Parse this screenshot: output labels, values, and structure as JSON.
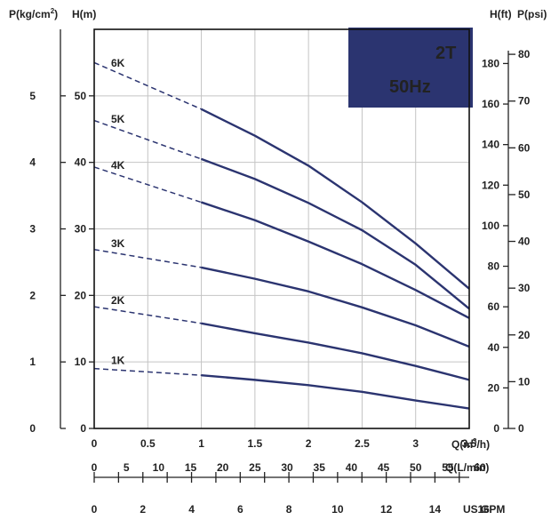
{
  "chart_data": {
    "type": "line",
    "badge": {
      "line1": "2T",
      "line2": "50Hz",
      "fill": "#2b3470",
      "text_color": "#ffffff"
    },
    "axis_titles": {
      "p_kg": "P(kg/cm",
      "p_kg_sup": "2",
      "p_kg_close": ")",
      "h_m": "H(m)",
      "h_ft": "H(ft)",
      "p_psi": "P(psi)",
      "q_m3h": "Q(m",
      "q_m3h_sup": "3",
      "q_m3h_close": "/h)",
      "q_lmin": "Q(L/min)",
      "us_gpm": "US GPM"
    },
    "x_m3h": {
      "min": 0,
      "max": 3.5,
      "ticks": [
        "0",
        "0.5",
        "1",
        "1.5",
        "2",
        "2.5",
        "3",
        "3.5"
      ]
    },
    "y_m": {
      "min": 0,
      "max": 60,
      "ticks": [
        "0",
        "10",
        "20",
        "30",
        "40",
        "50"
      ]
    },
    "y_kgcm2": {
      "ticks": [
        "0",
        "1",
        "2",
        "3",
        "4",
        "5"
      ]
    },
    "y_ft": {
      "ticks": [
        "0",
        "20",
        "40",
        "60",
        "80",
        "100",
        "120",
        "140",
        "160",
        "180"
      ]
    },
    "y_psi": {
      "ticks": [
        "0",
        "10",
        "20",
        "30",
        "40",
        "50",
        "60",
        "70",
        "80"
      ]
    },
    "x_lmin": {
      "ticks": [
        "0",
        "5",
        "10",
        "15",
        "20",
        "25",
        "30",
        "35",
        "40",
        "45",
        "50",
        "55",
        "60"
      ]
    },
    "x_gpm": {
      "ticks": [
        "0",
        "2",
        "4",
        "6",
        "8",
        "10",
        "12",
        "14",
        "16"
      ]
    },
    "grid": true,
    "line_color": "#2b3470",
    "series": [
      {
        "name": "1K",
        "dashed": {
          "x": [
            0,
            1
          ],
          "y": [
            9,
            8
          ]
        },
        "solid": {
          "x": [
            1,
            1.5,
            2,
            2.5,
            3,
            3.5
          ],
          "y": [
            8,
            7.3,
            6.5,
            5.5,
            4.2,
            3
          ]
        }
      },
      {
        "name": "2K",
        "dashed": {
          "x": [
            0,
            1
          ],
          "y": [
            18.3,
            15.8
          ]
        },
        "solid": {
          "x": [
            1,
            1.5,
            2,
            2.5,
            3,
            3.5
          ],
          "y": [
            15.8,
            14.3,
            12.9,
            11.3,
            9.4,
            7.3
          ]
        }
      },
      {
        "name": "3K",
        "dashed": {
          "x": [
            0,
            1
          ],
          "y": [
            26.9,
            24.2
          ]
        },
        "solid": {
          "x": [
            1,
            1.5,
            2,
            2.5,
            3,
            3.5
          ],
          "y": [
            24.2,
            22.5,
            20.6,
            18.2,
            15.5,
            12.3
          ]
        }
      },
      {
        "name": "4K",
        "dashed": {
          "x": [
            0,
            1
          ],
          "y": [
            39.3,
            34
          ]
        },
        "solid": {
          "x": [
            1,
            1.5,
            2,
            2.5,
            3,
            3.5
          ],
          "y": [
            34,
            31.3,
            28.1,
            24.7,
            20.8,
            16.6
          ]
        }
      },
      {
        "name": "5K",
        "dashed": {
          "x": [
            0,
            1
          ],
          "y": [
            46.3,
            40.5
          ]
        },
        "solid": {
          "x": [
            1,
            1.5,
            2,
            2.5,
            3,
            3.5
          ],
          "y": [
            40.5,
            37.5,
            33.9,
            29.8,
            24.6,
            18
          ]
        }
      },
      {
        "name": "6K",
        "dashed": {
          "x": [
            0,
            1
          ],
          "y": [
            55,
            48
          ]
        },
        "solid": {
          "x": [
            1,
            1.5,
            2,
            2.5,
            3,
            3.5
          ],
          "y": [
            48,
            44,
            39.5,
            34,
            27.8,
            21
          ]
        }
      }
    ]
  }
}
